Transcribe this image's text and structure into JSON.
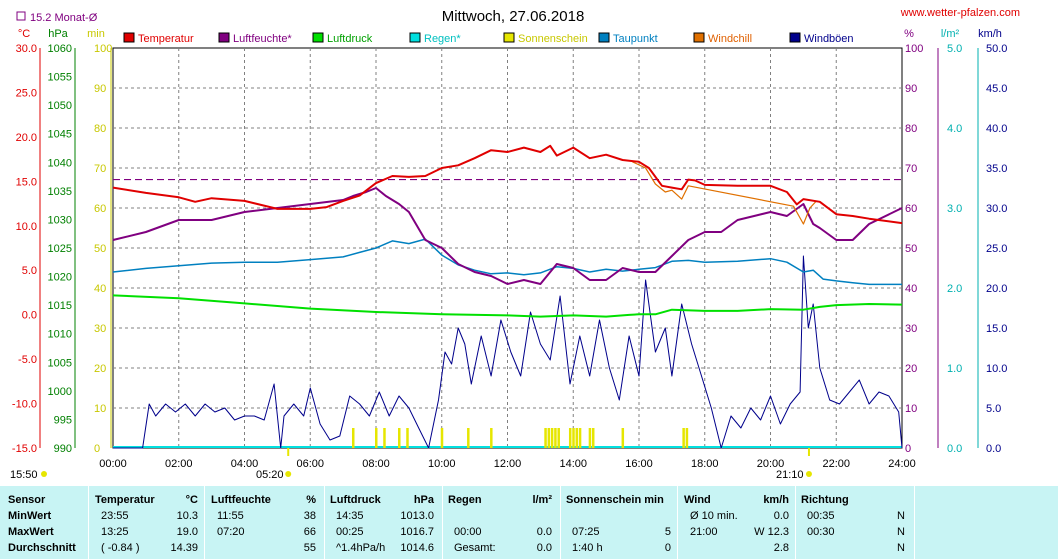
{
  "header": {
    "title": "Mittwoch, 27.06.2018",
    "source": "www.wetter-pfalzen.com",
    "monthly_avg": "15.2 Monat-Ø"
  },
  "colors": {
    "temperature": "#e00000",
    "humidity": "#800080",
    "pressure": "#00e000",
    "rain": "#00e0e0",
    "sunshine": "#e6e600",
    "dewpoint": "#0080c0",
    "windchill": "#e07000",
    "gust": "#00008b",
    "grid": "#808080",
    "table_bg": "#c8f4f4"
  },
  "chart_data": {
    "type": "line",
    "title": "Mittwoch, 27.06.2018",
    "x_unit": "hours",
    "xlim": [
      0,
      24
    ],
    "x_ticks": [
      "00:00",
      "02:00",
      "04:00",
      "06:00",
      "08:00",
      "10:00",
      "12:00",
      "14:00",
      "16:00",
      "18:00",
      "20:00",
      "22:00",
      "24:00"
    ],
    "axes": {
      "temperature": {
        "unit": "°C",
        "range": [
          -15,
          30
        ],
        "ticks": [
          "30.0",
          "25.0",
          "20.0",
          "15.0",
          "10.0",
          "5.0",
          "0.0",
          "-5.0",
          "-10.0",
          "-15.0"
        ]
      },
      "pressure": {
        "unit": "hPa",
        "range": [
          990,
          1060
        ],
        "ticks": [
          "1060",
          "1055",
          "1050",
          "1045",
          "1040",
          "1035",
          "1030",
          "1025",
          "1020",
          "1015",
          "1010",
          "1005",
          "1000",
          "995",
          "990"
        ]
      },
      "sunshine": {
        "unit": "min",
        "range": [
          0,
          100
        ],
        "ticks": [
          "100",
          "90",
          "80",
          "70",
          "60",
          "50",
          "40",
          "30",
          "20",
          "10",
          "0"
        ]
      },
      "humidity": {
        "unit": "%",
        "range": [
          0,
          100
        ],
        "ticks": [
          "100",
          "90",
          "80",
          "70",
          "60",
          "50",
          "40",
          "30",
          "20",
          "10",
          "0"
        ]
      },
      "rain": {
        "unit": "l/m²",
        "range": [
          0,
          5
        ],
        "ticks": [
          "5.0",
          "4.0",
          "3.0",
          "2.0",
          "1.0",
          "0.0"
        ]
      },
      "wind": {
        "unit": "km/h",
        "range": [
          0,
          50
        ],
        "ticks": [
          "50.0",
          "45.0",
          "40.0",
          "35.0",
          "30.0",
          "25.0",
          "20.0",
          "15.0",
          "10.0",
          "5.0",
          "0.0"
        ]
      }
    },
    "legend": [
      "Temperatur",
      "Luftfeuchte*",
      "Luftdruck",
      "Regen*",
      "Sonnenschein",
      "Taupunkt",
      "Windchill",
      "Windböen"
    ],
    "monthly_mean_temperature": 15.2,
    "series": [
      {
        "name": "Temperatur",
        "axis": "temperature",
        "x": [
          0,
          1,
          2,
          2.5,
          3,
          4,
          5,
          6,
          6.5,
          7,
          7.5,
          8,
          8.5,
          9,
          9.5,
          10,
          10.5,
          11,
          11.5,
          12,
          12.5,
          13,
          13.3,
          13.5,
          14,
          14.5,
          15,
          15.5,
          16,
          16.3,
          16.7,
          17,
          17.3,
          17.5,
          17.7,
          18,
          19,
          20,
          20.5,
          20.8,
          21,
          21.5,
          22,
          22.5,
          23,
          24
        ],
        "y": [
          14.3,
          13.7,
          13.2,
          12.7,
          13.1,
          12.8,
          11.9,
          11.9,
          12.1,
          12.8,
          13.4,
          14.8,
          15.6,
          15.5,
          15.6,
          16.5,
          16.8,
          17.6,
          18.5,
          18.3,
          18.8,
          18.3,
          19.0,
          17.9,
          18.8,
          17.6,
          18.0,
          17.4,
          17.2,
          16.5,
          14.5,
          14.3,
          14.1,
          15.2,
          15.1,
          14.6,
          14.5,
          14.5,
          13.8,
          12.4,
          13.0,
          12.7,
          11.3,
          11.1,
          10.8,
          10.3
        ]
      },
      {
        "name": "Luftfeuchte*",
        "axis": "humidity",
        "x": [
          0,
          1,
          2,
          3,
          4,
          5,
          6,
          7,
          7.3,
          7.7,
          8,
          8.3,
          8.7,
          9,
          9.5,
          10,
          10.5,
          11,
          11.5,
          12,
          12.5,
          13,
          13.5,
          14,
          14.5,
          15,
          15.5,
          16,
          16.5,
          17,
          17.5,
          18,
          18.5,
          19,
          19.5,
          20,
          20.5,
          21,
          21.3,
          21.5,
          22,
          22.5,
          23,
          24
        ],
        "y": [
          52,
          54,
          57,
          57,
          59,
          60,
          61,
          62,
          63,
          64,
          65,
          63,
          61,
          59,
          52,
          50,
          46,
          44,
          43,
          41,
          42,
          41,
          46,
          45,
          42,
          42,
          45,
          44,
          44,
          48,
          52,
          54,
          54,
          57,
          58,
          59,
          58,
          61,
          56,
          55,
          52,
          52,
          56,
          60
        ]
      },
      {
        "name": "Luftdruck",
        "axis": "pressure",
        "x": [
          0,
          2,
          4,
          6,
          8,
          10,
          12,
          13,
          14,
          15,
          15.7,
          16,
          16.5,
          17,
          18,
          19,
          20,
          21,
          21.5,
          22,
          23,
          24
        ],
        "y": [
          1016.7,
          1016.2,
          1015.3,
          1014.4,
          1013.8,
          1013.4,
          1013.2,
          1013.0,
          1013.2,
          1013.0,
          1013.3,
          1013.4,
          1013.4,
          1014.2,
          1014.0,
          1014.0,
          1014.3,
          1014.2,
          1014.7,
          1015.0,
          1015.2,
          1015.1
        ]
      },
      {
        "name": "Taupunkt",
        "axis": "temperature",
        "x": [
          0,
          1,
          2,
          3,
          4,
          5,
          6,
          7,
          7.5,
          8,
          8.5,
          9,
          9.5,
          10,
          10.5,
          11,
          11.5,
          12,
          12.5,
          13,
          13.5,
          14,
          14.5,
          15,
          15.5,
          16,
          16.5,
          17,
          17.5,
          18,
          19,
          20,
          20.5,
          21,
          21.3,
          21.6,
          22,
          22.5,
          23,
          24
        ],
        "y": [
          4.8,
          5.2,
          5.5,
          5.8,
          5.9,
          5.9,
          6.2,
          6.5,
          7.0,
          7.5,
          8.3,
          8.0,
          8.5,
          6.7,
          5.6,
          5.0,
          4.6,
          4.7,
          4.5,
          4.7,
          5.4,
          5.2,
          4.8,
          5.1,
          4.9,
          5.1,
          5.3,
          6.0,
          6.1,
          5.9,
          6.0,
          6.3,
          5.9,
          4.8,
          5.0,
          4.0,
          3.8,
          3.6,
          3.4,
          3.4
        ]
      },
      {
        "name": "Windchill",
        "axis": "temperature",
        "x": [
          15.8,
          16.2,
          16.5,
          16.8,
          17.0,
          17.3,
          17.5,
          20.7,
          21.0,
          21.2,
          21.4
        ],
        "y": [
          17.2,
          16.5,
          14.7,
          13.8,
          14.0,
          13.0,
          14.5,
          12.2,
          10.2,
          12.0,
          12.8
        ]
      },
      {
        "name": "Windböen",
        "axis": "wind",
        "x": [
          0,
          0.9,
          1.1,
          1.3,
          1.6,
          1.9,
          2.2,
          2.5,
          2.8,
          3.1,
          3.4,
          3.7,
          4.0,
          4.3,
          4.6,
          4.9,
          5.1,
          5.2,
          5.5,
          5.8,
          6.0,
          6.3,
          6.6,
          6.9,
          7.2,
          7.5,
          7.8,
          8.1,
          8.4,
          8.7,
          9.0,
          9.3,
          9.6,
          9.9,
          10.1,
          10.3,
          10.5,
          10.7,
          10.9,
          11.2,
          11.5,
          11.8,
          12.1,
          12.4,
          12.7,
          13.0,
          13.3,
          13.6,
          13.9,
          14.2,
          14.5,
          14.8,
          15.1,
          15.4,
          15.7,
          16.0,
          16.2,
          16.5,
          16.8,
          17.0,
          17.3,
          17.6,
          17.9,
          18.2,
          18.5,
          18.8,
          19.1,
          19.4,
          19.7,
          20.0,
          20.3,
          20.6,
          20.9,
          21.0,
          21.15,
          21.3,
          21.5,
          21.8,
          22.1,
          22.4,
          22.7,
          23.0,
          23.3,
          23.6,
          23.9,
          24.0
        ],
        "y": [
          0,
          0,
          5.5,
          4.0,
          5.5,
          4.5,
          5.5,
          4.0,
          5.5,
          4.5,
          5.0,
          3.5,
          4.0,
          4.0,
          3.5,
          8.0,
          0,
          4.0,
          5.5,
          4.0,
          7.5,
          3.0,
          1.0,
          1.5,
          6.5,
          5.5,
          4.0,
          7.0,
          4.0,
          6.5,
          5.0,
          2.5,
          0,
          6.0,
          12.0,
          10.5,
          15.0,
          13.0,
          8.0,
          14.0,
          9.0,
          16.0,
          12.0,
          9.0,
          17.0,
          13.0,
          11.0,
          19.0,
          8.0,
          14.0,
          9.0,
          16.0,
          10.0,
          6.0,
          14.0,
          9.0,
          21.0,
          12.0,
          15.0,
          9.0,
          18.0,
          13.0,
          9.0,
          5.0,
          0,
          4.0,
          2.5,
          5.0,
          3.5,
          6.5,
          3.0,
          5.5,
          7.0,
          24.0,
          15.0,
          18.0,
          10.0,
          6.0,
          5.5,
          7.0,
          8.5,
          5.5,
          7.0,
          6.5,
          4.5,
          0
        ]
      }
    ],
    "sunshine_marks_hours": [
      7.3,
      8.0,
      8.25,
      8.7,
      8.95,
      10.0,
      10.8,
      11.5,
      13.15,
      13.25,
      13.35,
      13.45,
      13.55,
      13.9,
      14.0,
      14.1,
      14.2,
      14.5,
      14.6,
      15.5,
      17.35,
      17.45
    ],
    "sunrise": "05:20",
    "sunset": "21:10",
    "daylength_label": "15:50"
  },
  "table": {
    "row_labels": [
      "Sensor",
      "MinWert",
      "MaxWert",
      "Durchschnitt"
    ],
    "columns": [
      {
        "title": "Temperatur",
        "unit": "°C",
        "rows": [
          [
            "23:55",
            "10.3"
          ],
          [
            "13:25",
            "19.0"
          ],
          [
            "( -0.84 )",
            "14.39"
          ]
        ]
      },
      {
        "title": "Luftfeuchte",
        "unit": "%",
        "rows": [
          [
            "11:55",
            "38"
          ],
          [
            "07:20",
            "66"
          ],
          [
            "",
            "55"
          ]
        ]
      },
      {
        "title": "Luftdruck",
        "unit": "hPa",
        "rows": [
          [
            "14:35",
            "1013.0"
          ],
          [
            "00:25",
            "1016.7"
          ],
          [
            "^1.4hPa/h",
            "1014.6"
          ]
        ]
      },
      {
        "title": "Regen",
        "unit": "l/m²",
        "rows": [
          [
            "",
            ""
          ],
          [
            "00:00",
            "0.0"
          ],
          [
            "Gesamt:",
            "0.0"
          ]
        ]
      },
      {
        "title": "Sonnenschein min",
        "unit": "",
        "rows": [
          [
            "",
            ""
          ],
          [
            "07:25",
            "5"
          ],
          [
            "1:40 h",
            "0"
          ]
        ]
      },
      {
        "title": "Wind",
        "unit": "km/h",
        "rows": [
          [
            "Ø 10 min.",
            "0.0"
          ],
          [
            "21:00",
            "W 12.3"
          ],
          [
            "",
            "2.8"
          ]
        ]
      },
      {
        "title": "Richtung",
        "unit": "",
        "rows": [
          [
            "00:35",
            "N"
          ],
          [
            "00:30",
            "N"
          ],
          [
            "",
            "N"
          ]
        ]
      }
    ]
  }
}
